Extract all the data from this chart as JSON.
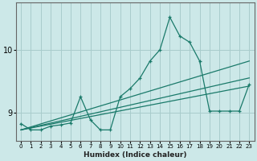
{
  "xlabel": "Humidex (Indice chaleur)",
  "ylabel": "",
  "xlim": [
    -0.5,
    23.5
  ],
  "ylim": [
    8.55,
    10.75
  ],
  "yticks": [
    9,
    10
  ],
  "xticks": [
    0,
    1,
    2,
    3,
    4,
    5,
    6,
    7,
    8,
    9,
    10,
    11,
    12,
    13,
    14,
    15,
    16,
    17,
    18,
    19,
    20,
    21,
    22,
    23
  ],
  "bg_color": "#cce8e8",
  "grid_color": "#a8cccc",
  "line_color": "#1a7a6a",
  "main_curve_x": [
    0,
    1,
    2,
    3,
    4,
    5,
    6,
    7,
    8,
    9,
    10,
    11,
    12,
    13,
    14,
    15,
    16,
    17,
    18,
    19,
    20,
    21,
    22,
    23
  ],
  "main_curve_y": [
    8.82,
    8.72,
    8.72,
    8.78,
    8.8,
    8.83,
    9.25,
    8.88,
    8.72,
    8.72,
    9.25,
    9.38,
    9.55,
    9.82,
    10.0,
    10.52,
    10.22,
    10.12,
    9.82,
    9.02,
    9.02,
    9.02,
    9.02,
    9.45
  ],
  "regression_lines": [
    {
      "x": [
        0,
        23
      ],
      "y": [
        8.72,
        9.82
      ]
    },
    {
      "x": [
        0,
        23
      ],
      "y": [
        8.72,
        9.55
      ]
    },
    {
      "x": [
        0,
        23
      ],
      "y": [
        8.72,
        9.42
      ]
    }
  ]
}
